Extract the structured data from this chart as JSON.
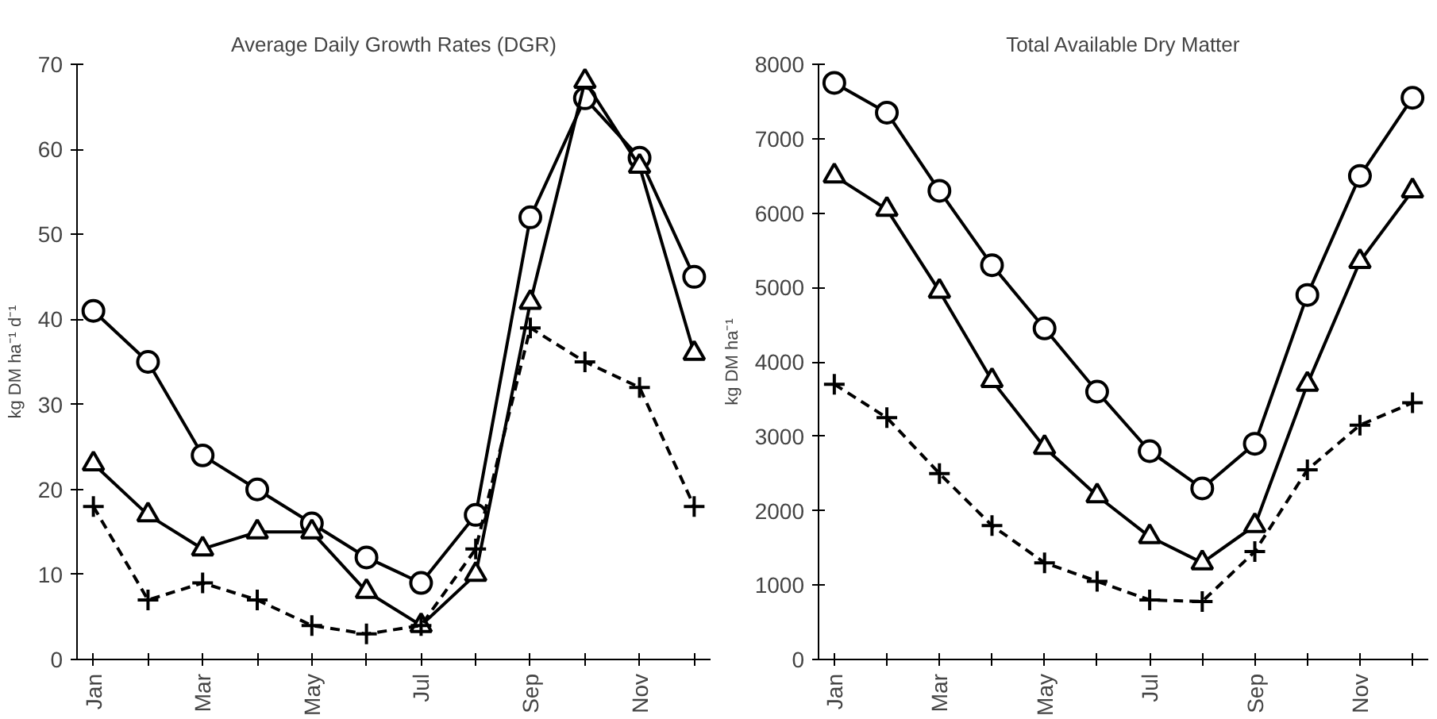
{
  "chart_data": [
    {
      "type": "line",
      "title": "Average Daily Growth Rates (DGR)",
      "ylabel": "kg DM ha⁻¹ d⁻¹",
      "categories": [
        "Jan",
        null,
        "Mar",
        null,
        "May",
        null,
        "Jul",
        null,
        "Sep",
        null,
        "Nov",
        null
      ],
      "ylim": [
        0,
        70
      ],
      "yticks": [
        0,
        10,
        20,
        30,
        40,
        50,
        60,
        70
      ],
      "grid": false,
      "series": [
        {
          "color": "#000000",
          "marker": "circle",
          "line_style": "solid",
          "values": [
            41,
            35,
            24,
            20,
            16,
            12,
            9,
            17,
            52,
            66,
            59,
            45
          ]
        },
        {
          "color": "#000000",
          "marker": "triangle",
          "line_style": "solid",
          "values": [
            23,
            17,
            13,
            15,
            15,
            8,
            4,
            10,
            42,
            68,
            58,
            36
          ]
        },
        {
          "color": "#000000",
          "marker": "cross",
          "line_style": "dashed",
          "values": [
            18,
            7,
            9,
            7,
            4,
            3,
            4,
            13,
            39,
            35,
            32,
            18
          ]
        }
      ]
    },
    {
      "type": "line",
      "title": "Total Available Dry Matter",
      "ylabel": "kg DM ha⁻¹",
      "categories": [
        "Jan",
        null,
        "Mar",
        null,
        "May",
        null,
        "Jul",
        null,
        "Sep",
        null,
        "Nov",
        null
      ],
      "ylim": [
        0,
        8000
      ],
      "yticks": [
        0,
        1000,
        2000,
        3000,
        4000,
        5000,
        6000,
        7000,
        8000
      ],
      "grid": false,
      "series": [
        {
          "color": "#000000",
          "marker": "circle",
          "line_style": "solid",
          "values": [
            7750,
            7350,
            6300,
            5300,
            4450,
            3600,
            2800,
            2300,
            2900,
            4900,
            6500,
            7550
          ]
        },
        {
          "color": "#000000",
          "marker": "triangle",
          "line_style": "solid",
          "values": [
            6500,
            6050,
            4950,
            3750,
            2850,
            2200,
            1650,
            1300,
            1800,
            3700,
            5350,
            6300
          ]
        },
        {
          "color": "#000000",
          "marker": "cross",
          "line_style": "dashed",
          "values": [
            3700,
            3250,
            2500,
            1800,
            1300,
            1050,
            800,
            780,
            1450,
            2550,
            3150,
            3450
          ]
        }
      ]
    }
  ]
}
